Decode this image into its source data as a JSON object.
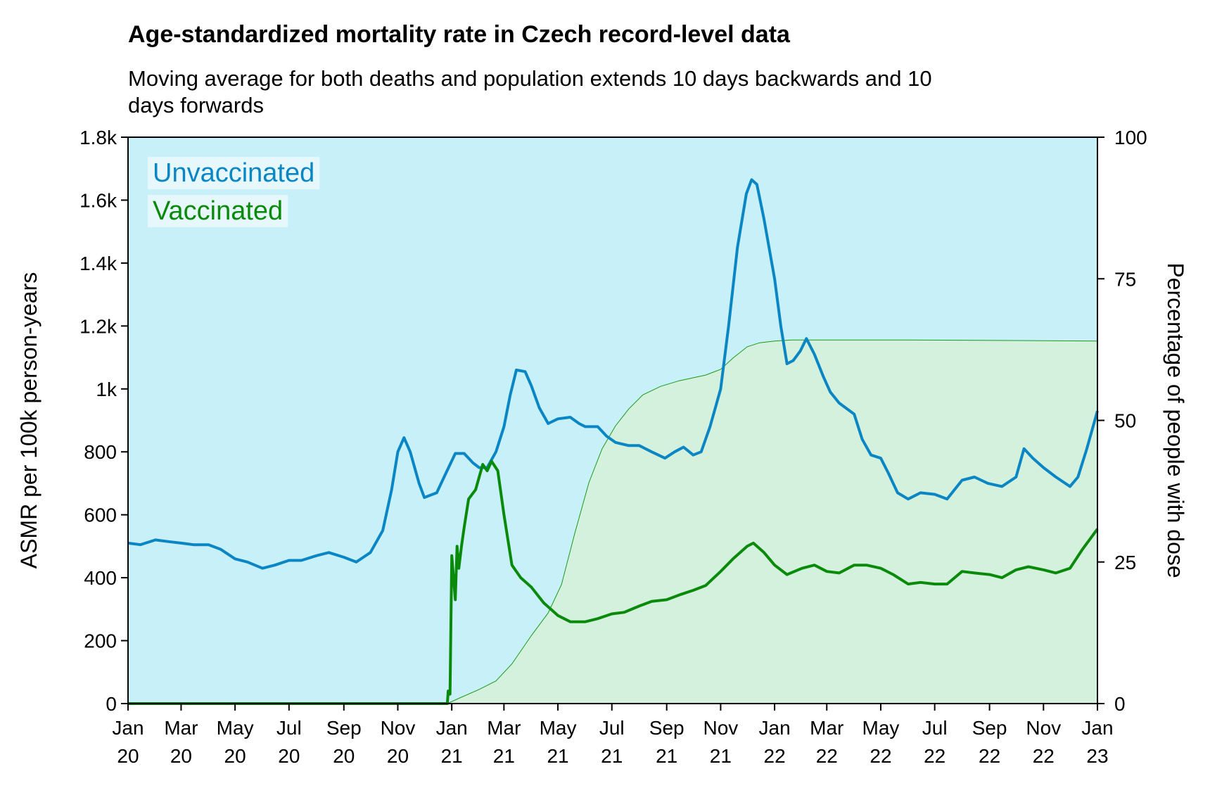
{
  "chart_data": {
    "type": "line",
    "title": "Age-standardized mortality rate in Czech record-level data",
    "subtitle_lines": [
      "Moving average for both deaths and population extends 10 days backwards and 10",
      "days forwards"
    ],
    "ylabel": "ASMR per 100k person-years",
    "y2label": "Percentage of people with dose",
    "x_range": [
      "2020-01-01",
      "2023-01-01"
    ],
    "ylim": [
      0,
      1800
    ],
    "y2lim": [
      0,
      100
    ],
    "yticks": [
      {
        "value": 0,
        "label": "0"
      },
      {
        "value": 200,
        "label": "200"
      },
      {
        "value": 400,
        "label": "400"
      },
      {
        "value": 600,
        "label": "600"
      },
      {
        "value": 800,
        "label": "800"
      },
      {
        "value": 1000,
        "label": "1k"
      },
      {
        "value": 1200,
        "label": "1.2k"
      },
      {
        "value": 1400,
        "label": "1.4k"
      },
      {
        "value": 1600,
        "label": "1.6k"
      },
      {
        "value": 1800,
        "label": "1.8k"
      }
    ],
    "y2ticks": [
      {
        "value": 0,
        "label": "0"
      },
      {
        "value": 25,
        "label": "25"
      },
      {
        "value": 50,
        "label": "50"
      },
      {
        "value": 75,
        "label": "75"
      },
      {
        "value": 100,
        "label": "100"
      }
    ],
    "xticks": [
      {
        "date": "2020-01-01",
        "month": "Jan",
        "year": "20"
      },
      {
        "date": "2020-03-01",
        "month": "Mar",
        "year": "20"
      },
      {
        "date": "2020-05-01",
        "month": "May",
        "year": "20"
      },
      {
        "date": "2020-07-01",
        "month": "Jul",
        "year": "20"
      },
      {
        "date": "2020-09-01",
        "month": "Sep",
        "year": "20"
      },
      {
        "date": "2020-11-01",
        "month": "Nov",
        "year": "20"
      },
      {
        "date": "2021-01-01",
        "month": "Jan",
        "year": "21"
      },
      {
        "date": "2021-03-01",
        "month": "Mar",
        "year": "21"
      },
      {
        "date": "2021-05-01",
        "month": "May",
        "year": "21"
      },
      {
        "date": "2021-07-01",
        "month": "Jul",
        "year": "21"
      },
      {
        "date": "2021-09-01",
        "month": "Sep",
        "year": "21"
      },
      {
        "date": "2021-11-01",
        "month": "Nov",
        "year": "21"
      },
      {
        "date": "2022-01-01",
        "month": "Jan",
        "year": "22"
      },
      {
        "date": "2022-03-01",
        "month": "Mar",
        "year": "22"
      },
      {
        "date": "2022-05-01",
        "month": "May",
        "year": "22"
      },
      {
        "date": "2022-07-01",
        "month": "Jul",
        "year": "22"
      },
      {
        "date": "2022-09-01",
        "month": "Sep",
        "year": "22"
      },
      {
        "date": "2022-11-01",
        "month": "Nov",
        "year": "22"
      },
      {
        "date": "2023-01-01",
        "month": "Jan",
        "year": "23"
      }
    ],
    "legend_position": "top-left",
    "grid": false,
    "colors": {
      "unvaccinated": "#0a86c4",
      "vaccinated": "#0a8a0a",
      "unvaccinated_bg": "#c8f0f9",
      "vaccinated_area": "#d3f1dc",
      "coverage_line": "#1a9a1a"
    },
    "series": [
      {
        "name": "Unvaccinated",
        "axis": "left",
        "points": [
          [
            "2020-01-01",
            510
          ],
          [
            "2020-01-15",
            505
          ],
          [
            "2020-02-01",
            520
          ],
          [
            "2020-02-15",
            515
          ],
          [
            "2020-03-01",
            510
          ],
          [
            "2020-03-15",
            505
          ],
          [
            "2020-04-01",
            505
          ],
          [
            "2020-04-15",
            490
          ],
          [
            "2020-05-01",
            460
          ],
          [
            "2020-05-15",
            450
          ],
          [
            "2020-06-01",
            430
          ],
          [
            "2020-06-15",
            440
          ],
          [
            "2020-07-01",
            455
          ],
          [
            "2020-07-15",
            455
          ],
          [
            "2020-08-01",
            470
          ],
          [
            "2020-08-15",
            480
          ],
          [
            "2020-09-01",
            465
          ],
          [
            "2020-09-15",
            450
          ],
          [
            "2020-10-01",
            480
          ],
          [
            "2020-10-15",
            550
          ],
          [
            "2020-10-25",
            680
          ],
          [
            "2020-11-01",
            800
          ],
          [
            "2020-11-08",
            845
          ],
          [
            "2020-11-15",
            800
          ],
          [
            "2020-11-25",
            700
          ],
          [
            "2020-12-01",
            655
          ],
          [
            "2020-12-15",
            670
          ],
          [
            "2020-12-25",
            730
          ],
          [
            "2021-01-05",
            795
          ],
          [
            "2021-01-15",
            795
          ],
          [
            "2021-01-25",
            765
          ],
          [
            "2021-02-01",
            750
          ],
          [
            "2021-02-10",
            750
          ],
          [
            "2021-02-20",
            800
          ],
          [
            "2021-03-01",
            880
          ],
          [
            "2021-03-08",
            980
          ],
          [
            "2021-03-15",
            1060
          ],
          [
            "2021-03-25",
            1055
          ],
          [
            "2021-04-01",
            1010
          ],
          [
            "2021-04-10",
            940
          ],
          [
            "2021-04-20",
            890
          ],
          [
            "2021-05-01",
            905
          ],
          [
            "2021-05-15",
            910
          ],
          [
            "2021-05-25",
            890
          ],
          [
            "2021-06-01",
            880
          ],
          [
            "2021-06-15",
            880
          ],
          [
            "2021-06-25",
            850
          ],
          [
            "2021-07-05",
            830
          ],
          [
            "2021-07-20",
            820
          ],
          [
            "2021-08-01",
            820
          ],
          [
            "2021-08-15",
            800
          ],
          [
            "2021-08-30",
            780
          ],
          [
            "2021-09-10",
            800
          ],
          [
            "2021-09-20",
            815
          ],
          [
            "2021-10-01",
            790
          ],
          [
            "2021-10-10",
            800
          ],
          [
            "2021-10-20",
            880
          ],
          [
            "2021-11-01",
            1000
          ],
          [
            "2021-11-10",
            1200
          ],
          [
            "2021-11-20",
            1450
          ],
          [
            "2021-11-30",
            1620
          ],
          [
            "2021-12-06",
            1665
          ],
          [
            "2021-12-12",
            1650
          ],
          [
            "2021-12-20",
            1540
          ],
          [
            "2022-01-01",
            1350
          ],
          [
            "2022-01-08",
            1200
          ],
          [
            "2022-01-15",
            1080
          ],
          [
            "2022-01-22",
            1090
          ],
          [
            "2022-01-30",
            1120
          ],
          [
            "2022-02-06",
            1160
          ],
          [
            "2022-02-15",
            1110
          ],
          [
            "2022-02-25",
            1040
          ],
          [
            "2022-03-05",
            990
          ],
          [
            "2022-03-15",
            955
          ],
          [
            "2022-04-01",
            920
          ],
          [
            "2022-04-10",
            840
          ],
          [
            "2022-04-20",
            790
          ],
          [
            "2022-05-01",
            780
          ],
          [
            "2022-05-10",
            730
          ],
          [
            "2022-05-20",
            670
          ],
          [
            "2022-06-01",
            650
          ],
          [
            "2022-06-15",
            670
          ],
          [
            "2022-07-01",
            665
          ],
          [
            "2022-07-15",
            650
          ],
          [
            "2022-08-01",
            710
          ],
          [
            "2022-08-15",
            720
          ],
          [
            "2022-08-30",
            700
          ],
          [
            "2022-09-15",
            690
          ],
          [
            "2022-10-01",
            720
          ],
          [
            "2022-10-10",
            810
          ],
          [
            "2022-10-20",
            780
          ],
          [
            "2022-11-01",
            750
          ],
          [
            "2022-11-15",
            720
          ],
          [
            "2022-12-01",
            690
          ],
          [
            "2022-12-10",
            720
          ],
          [
            "2022-12-20",
            810
          ],
          [
            "2023-01-01",
            930
          ]
        ]
      },
      {
        "name": "Vaccinated",
        "axis": "left",
        "points": [
          [
            "2020-01-01",
            0
          ],
          [
            "2020-12-27",
            0
          ],
          [
            "2020-12-28",
            40
          ],
          [
            "2020-12-30",
            30
          ],
          [
            "2021-01-01",
            470
          ],
          [
            "2021-01-03",
            400
          ],
          [
            "2021-01-05",
            330
          ],
          [
            "2021-01-07",
            500
          ],
          [
            "2021-01-09",
            430
          ],
          [
            "2021-01-12",
            500
          ],
          [
            "2021-01-15",
            560
          ],
          [
            "2021-01-20",
            650
          ],
          [
            "2021-01-28",
            680
          ],
          [
            "2021-02-05",
            760
          ],
          [
            "2021-02-10",
            740
          ],
          [
            "2021-02-15",
            770
          ],
          [
            "2021-02-22",
            740
          ],
          [
            "2021-03-01",
            600
          ],
          [
            "2021-03-10",
            440
          ],
          [
            "2021-03-20",
            400
          ],
          [
            "2021-04-01",
            370
          ],
          [
            "2021-04-15",
            320
          ],
          [
            "2021-05-01",
            280
          ],
          [
            "2021-05-15",
            260
          ],
          [
            "2021-06-01",
            260
          ],
          [
            "2021-06-15",
            270
          ],
          [
            "2021-07-01",
            285
          ],
          [
            "2021-07-15",
            290
          ],
          [
            "2021-08-01",
            310
          ],
          [
            "2021-08-15",
            325
          ],
          [
            "2021-09-01",
            330
          ],
          [
            "2021-09-15",
            345
          ],
          [
            "2021-10-01",
            360
          ],
          [
            "2021-10-15",
            375
          ],
          [
            "2021-11-01",
            420
          ],
          [
            "2021-11-15",
            460
          ],
          [
            "2021-12-01",
            500
          ],
          [
            "2021-12-08",
            510
          ],
          [
            "2021-12-20",
            480
          ],
          [
            "2022-01-01",
            440
          ],
          [
            "2022-01-15",
            410
          ],
          [
            "2022-02-01",
            430
          ],
          [
            "2022-02-15",
            440
          ],
          [
            "2022-03-01",
            420
          ],
          [
            "2022-03-15",
            415
          ],
          [
            "2022-04-01",
            440
          ],
          [
            "2022-04-15",
            440
          ],
          [
            "2022-05-01",
            430
          ],
          [
            "2022-05-15",
            410
          ],
          [
            "2022-06-01",
            380
          ],
          [
            "2022-06-15",
            385
          ],
          [
            "2022-07-01",
            380
          ],
          [
            "2022-07-15",
            380
          ],
          [
            "2022-08-01",
            420
          ],
          [
            "2022-08-15",
            415
          ],
          [
            "2022-09-01",
            410
          ],
          [
            "2022-09-15",
            400
          ],
          [
            "2022-10-01",
            425
          ],
          [
            "2022-10-15",
            435
          ],
          [
            "2022-11-01",
            425
          ],
          [
            "2022-11-15",
            415
          ],
          [
            "2022-12-01",
            430
          ],
          [
            "2022-12-15",
            490
          ],
          [
            "2023-01-01",
            555
          ]
        ]
      },
      {
        "axis": "right",
        "points": [
          [
            "2020-01-01",
            0
          ],
          [
            "2020-12-27",
            0
          ],
          [
            "2021-01-10",
            1
          ],
          [
            "2021-02-01",
            2.5
          ],
          [
            "2021-02-20",
            4
          ],
          [
            "2021-03-10",
            7
          ],
          [
            "2021-04-01",
            12
          ],
          [
            "2021-04-20",
            16
          ],
          [
            "2021-05-05",
            21
          ],
          [
            "2021-05-20",
            30
          ],
          [
            "2021-06-05",
            39
          ],
          [
            "2021-06-20",
            45
          ],
          [
            "2021-07-05",
            49
          ],
          [
            "2021-07-20",
            52
          ],
          [
            "2021-08-05",
            54.5
          ],
          [
            "2021-08-25",
            56
          ],
          [
            "2021-09-15",
            57
          ],
          [
            "2021-10-15",
            58
          ],
          [
            "2021-11-01",
            59
          ],
          [
            "2021-11-15",
            61
          ],
          [
            "2021-12-01",
            63
          ],
          [
            "2021-12-15",
            63.7
          ],
          [
            "2022-01-01",
            64
          ],
          [
            "2022-01-20",
            64.2
          ],
          [
            "2022-02-15",
            64.2
          ],
          [
            "2022-06-01",
            64.2
          ],
          [
            "2022-10-01",
            64.1
          ],
          [
            "2023-01-01",
            64
          ]
        ]
      }
    ]
  }
}
